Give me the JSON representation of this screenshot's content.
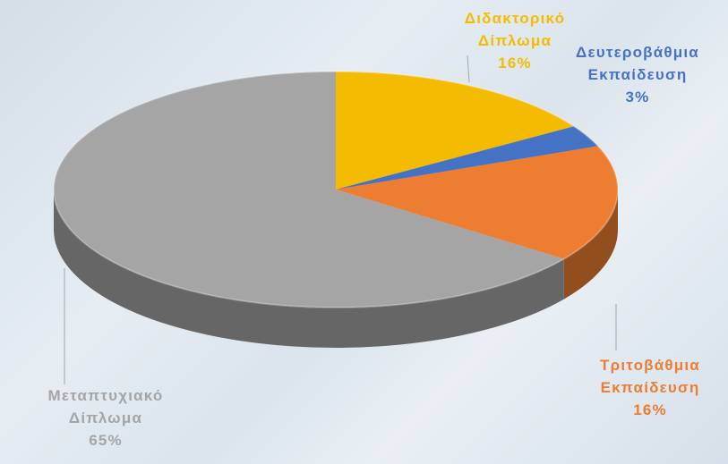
{
  "chart_data": {
    "type": "pie3d",
    "categories": [
      "Διδακτορικό Δίπλωμα",
      "Δευτεροβάθμια Εκπαίδευση",
      "Τριτοβάθμια Εκπαίδευση",
      "Μεταπτυχιακό Δίπλωμα"
    ],
    "values": [
      16,
      3,
      16,
      65
    ],
    "value_labels": [
      "16%",
      "3%",
      "16%",
      "65%"
    ],
    "colors": [
      "#f5bb00",
      "#4472c4",
      "#ed7d31",
      "#a5a5a5"
    ],
    "label_colors": [
      "#f5bb00",
      "#4472c4",
      "#ed7d31",
      "#a5a5a5"
    ]
  }
}
